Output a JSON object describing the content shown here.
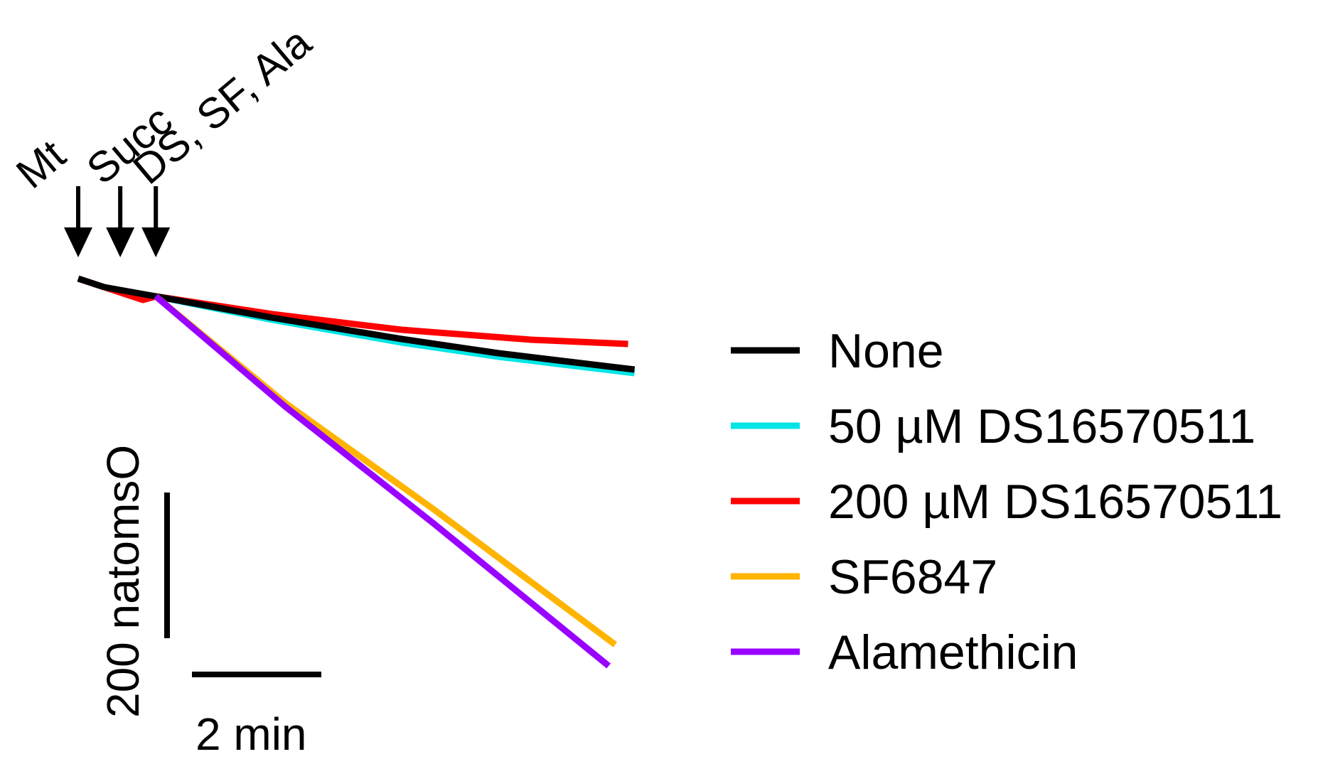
{
  "chart_data": {
    "type": "line",
    "title": "",
    "xlabel": "",
    "ylabel": "",
    "x_unit": "min",
    "y_unit": "natomsO",
    "xlim": [
      0,
      8.3
    ],
    "ylim": [
      -600,
      0
    ],
    "grid": false,
    "legend_position": "right",
    "scale_bars": {
      "x": {
        "label": "2 min",
        "value": 2
      },
      "y": {
        "label": "200 natomsO",
        "value": 200
      }
    },
    "annotations": [
      {
        "label": "Mt",
        "x": 0.0
      },
      {
        "label": "Succ",
        "x": 0.65
      },
      {
        "label": "DS, SF, Ala",
        "x": 1.2
      }
    ],
    "series": [
      {
        "name": "None",
        "color": "#000000",
        "points": [
          [
            0.0,
            0
          ],
          [
            0.4,
            -12
          ],
          [
            1.2,
            -25
          ],
          [
            3.0,
            -55
          ],
          [
            5.0,
            -85
          ],
          [
            6.5,
            -105
          ],
          [
            8.6,
            -128
          ]
        ]
      },
      {
        "name": "50 µM DS16570511",
        "color": "#00e5e5",
        "points": [
          [
            1.2,
            -25
          ],
          [
            3.0,
            -58
          ],
          [
            5.0,
            -90
          ],
          [
            6.5,
            -110
          ],
          [
            8.6,
            -133
          ]
        ]
      },
      {
        "name": "200 µM DS16570511",
        "color": "#ff0000",
        "points": [
          [
            0.0,
            0
          ],
          [
            0.4,
            -12
          ],
          [
            1.0,
            -30
          ],
          [
            1.2,
            -25
          ],
          [
            3.0,
            -50
          ],
          [
            5.0,
            -72
          ],
          [
            7.0,
            -86
          ],
          [
            8.5,
            -92
          ]
        ]
      },
      {
        "name": "SF6847",
        "color": "#ffb400",
        "points": [
          [
            1.2,
            -25
          ],
          [
            3.2,
            -175
          ],
          [
            5.5,
            -325
          ],
          [
            8.3,
            -515
          ]
        ]
      },
      {
        "name": "Alamethicin",
        "color": "#9a00ff",
        "points": [
          [
            1.2,
            -25
          ],
          [
            3.2,
            -180
          ],
          [
            5.5,
            -345
          ],
          [
            8.2,
            -545
          ]
        ]
      }
    ]
  }
}
